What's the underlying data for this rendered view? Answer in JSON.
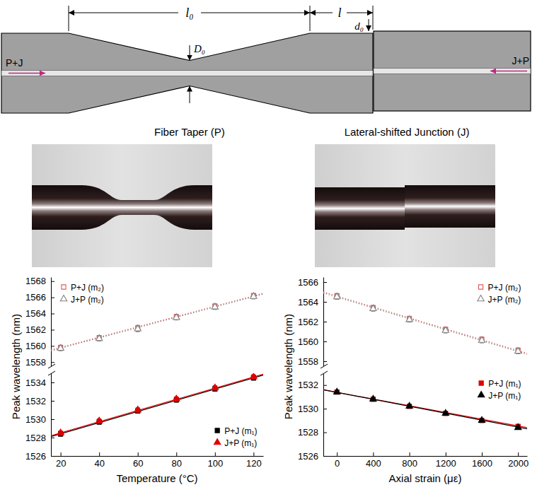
{
  "diagram": {
    "taper_length": "l₀",
    "junction_length": "l",
    "waist_diameter": "D₀",
    "offset": "d₀",
    "input_left": "P+J",
    "input_right": "J+P",
    "taper_caption": "Fiber Taper (P)",
    "junction_caption": "Lateral-shifted Junction (J)"
  },
  "chart_data": [
    {
      "type": "scatter",
      "xlim": [
        15,
        125
      ],
      "ylim": [
        1557.5,
        1568.5
      ],
      "yticks": [
        1558,
        1560,
        1562,
        1564,
        1566,
        1568
      ],
      "tick_labels": "y",
      "legend": "upper left",
      "x": [
        20,
        40,
        60,
        80,
        100,
        120
      ],
      "series": [
        {
          "name": "P+J (m₂)",
          "color": "#e05a5a",
          "marker": "square-open",
          "line_style": "dotted",
          "values": [
            1559.8,
            1561.0,
            1562.2,
            1563.6,
            1564.9,
            1566.2
          ],
          "error": [
            0.3,
            0.3,
            0.35,
            0.3,
            0.3,
            0.3
          ],
          "fit": {
            "x": [
              15,
              125
            ],
            "y": [
              1559.5,
              1566.5
            ]
          }
        },
        {
          "name": "J+P (m₂)",
          "color": "#808080",
          "marker": "triangle-open",
          "line_style": "dotted",
          "values": [
            1559.7,
            1560.9,
            1562.1,
            1563.5,
            1564.8,
            1566.1
          ],
          "error": [
            0.3,
            0.3,
            0.35,
            0.3,
            0.3,
            0.3
          ],
          "fit": {
            "x": [
              15,
              125
            ],
            "y": [
              1559.4,
              1566.4
            ]
          }
        }
      ]
    },
    {
      "type": "scatter",
      "xlim": [
        15,
        125
      ],
      "xticks": [
        20,
        40,
        60,
        80,
        100,
        120
      ],
      "ylim": [
        1526,
        1535
      ],
      "yticks": [
        1526,
        1528,
        1530,
        1532,
        1534
      ],
      "x_label": "Temperature (°C)",
      "y_label": "Peak wavelength (nm)",
      "legend": "lower right",
      "x": [
        20,
        40,
        60,
        80,
        100,
        120
      ],
      "series": [
        {
          "name": "P+J (m₁)",
          "color": "#000000",
          "marker": "square",
          "line_style": "solid",
          "values": [
            1528.4,
            1529.7,
            1530.9,
            1532.1,
            1533.3,
            1534.5
          ],
          "error": [
            0.25,
            0.25,
            0.25,
            0.25,
            0.25,
            0.25
          ],
          "fit": {
            "x": [
              15,
              125
            ],
            "y": [
              1528.1,
              1534.8
            ]
          }
        },
        {
          "name": "J+P (m₁)",
          "color": "#e00000",
          "marker": "triangle",
          "line_style": "solid",
          "values": [
            1528.5,
            1529.8,
            1531.0,
            1532.2,
            1533.4,
            1534.6
          ],
          "error": [
            0.25,
            0.25,
            0.25,
            0.25,
            0.25,
            0.25
          ],
          "fit": {
            "x": [
              15,
              125
            ],
            "y": [
              1528.2,
              1534.9
            ]
          }
        }
      ]
    },
    {
      "type": "scatter",
      "xlim": [
        -150,
        2100
      ],
      "ylim": [
        1557.5,
        1566.5
      ],
      "yticks": [
        1558,
        1560,
        1562,
        1564,
        1566
      ],
      "tick_labels": "y",
      "legend": "upper right",
      "x": [
        0,
        400,
        800,
        1200,
        1600,
        2000
      ],
      "series": [
        {
          "name": "P+J (m₂)",
          "color": "#e05a5a",
          "marker": "square-open",
          "line_style": "dotted",
          "values": [
            1564.6,
            1563.4,
            1562.3,
            1561.2,
            1560.2,
            1559.1
          ],
          "error": [
            0.25,
            0.25,
            0.25,
            0.25,
            0.25,
            0.25
          ],
          "fit": {
            "x": [
              -150,
              2100
            ],
            "y": [
              1565.0,
              1558.8
            ]
          }
        },
        {
          "name": "J+P (m₂)",
          "color": "#808080",
          "marker": "triangle-open",
          "line_style": "dotted",
          "values": [
            1564.5,
            1563.3,
            1562.2,
            1561.1,
            1560.1,
            1559.0
          ],
          "error": [
            0.25,
            0.25,
            0.25,
            0.25,
            0.25,
            0.25
          ],
          "fit": {
            "x": [
              -150,
              2100
            ],
            "y": [
              1564.9,
              1558.7
            ]
          }
        }
      ]
    },
    {
      "type": "scatter",
      "xlim": [
        -150,
        2100
      ],
      "xticks": [
        0,
        400,
        800,
        1200,
        1600,
        2000
      ],
      "ylim": [
        1526,
        1533
      ],
      "yticks": [
        1526,
        1528,
        1530,
        1532
      ],
      "x_label": "Axial strain (με)",
      "y_label": "Peak wavelength (nm)",
      "legend": "upper right",
      "x": [
        0,
        400,
        800,
        1200,
        1600,
        2000
      ],
      "series": [
        {
          "name": "P+J (m₁)",
          "color": "#e00000",
          "marker": "square",
          "line_style": "solid",
          "values": [
            1531.4,
            1530.8,
            1530.2,
            1529.6,
            1529.0,
            1528.5
          ],
          "error": [
            0.15,
            0.15,
            0.15,
            0.15,
            0.15,
            0.15
          ],
          "fit": {
            "x": [
              -150,
              2100
            ],
            "y": [
              1531.6,
              1528.4
            ]
          }
        },
        {
          "name": "J+P (m₁)",
          "color": "#000000",
          "marker": "triangle",
          "line_style": "solid",
          "values": [
            1531.4,
            1530.8,
            1530.2,
            1529.6,
            1529.0,
            1528.4
          ],
          "error": [
            0.15,
            0.15,
            0.15,
            0.15,
            0.15,
            0.15
          ],
          "fit": {
            "x": [
              -150,
              2100
            ],
            "y": [
              1531.6,
              1528.3
            ]
          }
        }
      ]
    }
  ]
}
